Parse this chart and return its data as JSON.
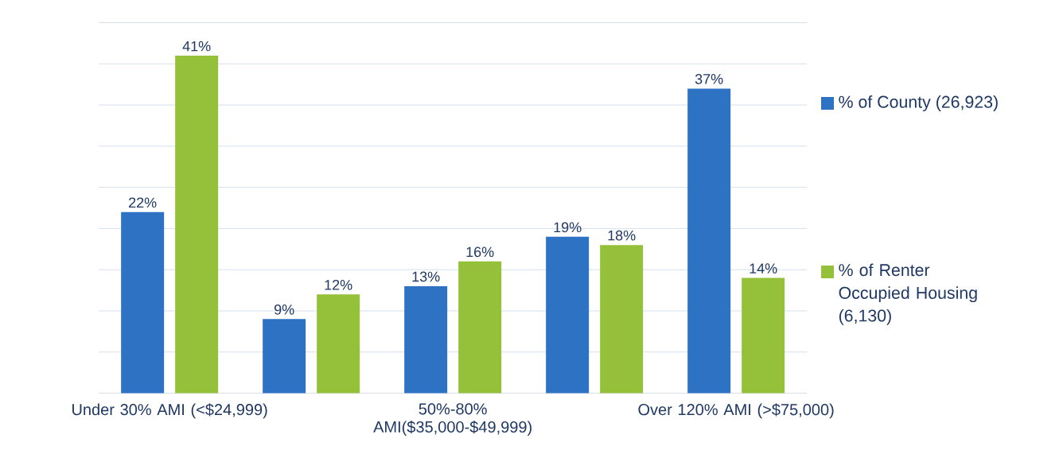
{
  "chart_data": {
    "type": "bar",
    "categories": [
      "Under 30% AMI (<$24,999)",
      null,
      "50%-80% AMI($35,000-$49,999)",
      null,
      "Over 120% AMI (>$75,000)"
    ],
    "series": [
      {
        "name": "% of County (26,923)",
        "color": "#2e72c4",
        "values": [
          22,
          9,
          13,
          19,
          37
        ],
        "value_labels": [
          "22%",
          "9%",
          "13%",
          "19%",
          "37%"
        ]
      },
      {
        "name": "% of Renter Occupied Housing (6,130)",
        "color": "#94c03a",
        "values": [
          41,
          12,
          16,
          18,
          14
        ],
        "value_labels": [
          "41%",
          "12%",
          "16%",
          "18%",
          "14%"
        ]
      }
    ],
    "ylim": [
      0,
      45
    ],
    "yticks": [
      {
        "value": 0,
        "label": null
      },
      {
        "value": 5,
        "label": null
      },
      {
        "value": 10,
        "label": null
      },
      {
        "value": 15,
        "label": null
      },
      {
        "value": 20,
        "label": null
      },
      {
        "value": 25,
        "label": null
      },
      {
        "value": 30,
        "label": null
      },
      {
        "value": 35,
        "label": null
      },
      {
        "value": 40,
        "label": null
      },
      {
        "value": 45,
        "label": null
      }
    ],
    "grid": "y",
    "legend": "right",
    "tick_labels": "x"
  }
}
